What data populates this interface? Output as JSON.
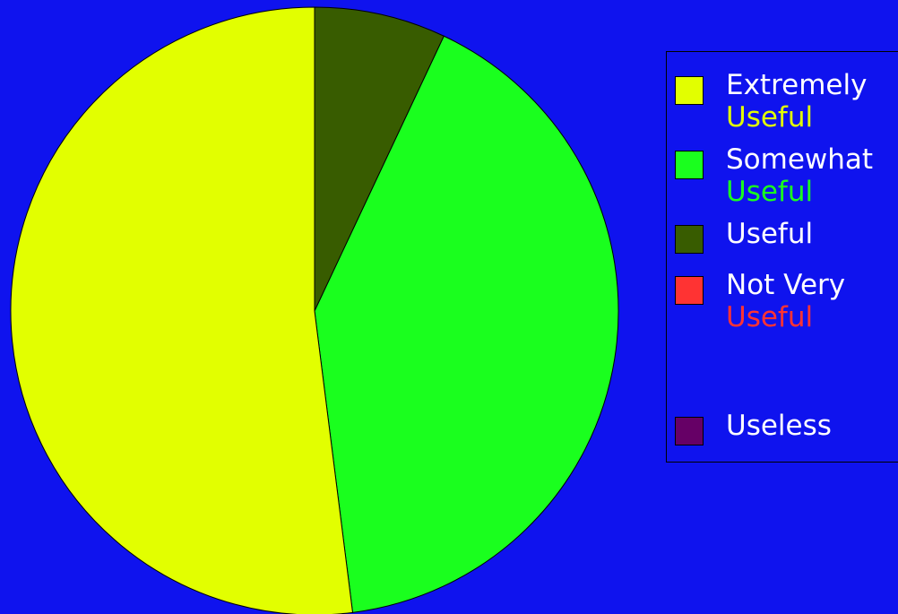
{
  "chart_data": {
    "type": "pie",
    "title": "",
    "categories": [
      "Extremely Useful",
      "Somewhat Useful",
      "Useful",
      "Not Very Useful",
      "Useless"
    ],
    "values": [
      52,
      41,
      7,
      0,
      0
    ],
    "colors": [
      "#e2ff00",
      "#1aff1e",
      "#385c00",
      "#ff3333",
      "#660066"
    ],
    "legend_placement": "right",
    "legend": [
      {
        "line1": "Extremely",
        "line2": "Useful"
      },
      {
        "line1": "Somewhat",
        "line2": "Useful"
      },
      {
        "line1": "Useful",
        "line2": ""
      },
      {
        "line1": "Not Very",
        "line2": "Useful"
      },
      {
        "line1": "Useless",
        "line2": ""
      }
    ]
  },
  "colors": {
    "background": "#0f13ee",
    "outline": "#000000"
  }
}
